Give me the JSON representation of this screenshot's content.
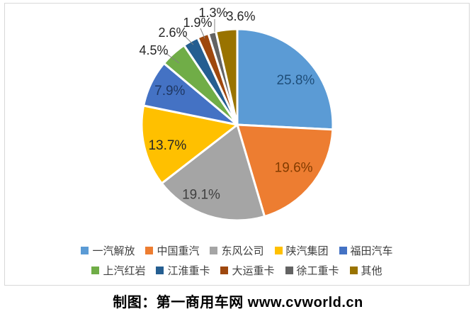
{
  "chart_data": {
    "type": "pie",
    "categories": [
      "一汽解放",
      "中国重汽",
      "东风公司",
      "陕汽集团",
      "福田汽车",
      "上汽红岩",
      "江淮重卡",
      "大运重卡",
      "徐工重卡",
      "其他"
    ],
    "values": [
      25.8,
      19.6,
      19.1,
      13.7,
      7.9,
      4.5,
      2.6,
      1.9,
      1.3,
      3.6
    ],
    "data_labels": [
      "25.8%",
      "19.6%",
      "19.1%",
      "13.7%",
      "7.9%",
      "4.5%",
      "2.6%",
      "1.9%",
      "1.3%",
      "3.6%"
    ],
    "slice_colors": [
      "#5B9BD5",
      "#ED7D31",
      "#A5A5A5",
      "#FFC000",
      "#4472C4",
      "#70AD47",
      "#255E91",
      "#9E480E",
      "#636363",
      "#997300"
    ],
    "label_colors": [
      "#1F4E79",
      "#833C00",
      "#404040",
      "#262626",
      "#1F3864",
      "#262626",
      "#262626",
      "#262626",
      "#262626",
      "#262626"
    ],
    "start_angle_deg": 0,
    "direction": "clockwise",
    "slice_border_color": "#FFFFFF",
    "leader_line_color": "#808080",
    "legend_position": "bottom",
    "legend_rows": [
      [
        0,
        1,
        2,
        3,
        4
      ],
      [
        5,
        6,
        7,
        8,
        9
      ]
    ],
    "title": "",
    "grid": false
  },
  "footer": {
    "caption": "制图：第一商用车网 www.cvworld.cn"
  }
}
